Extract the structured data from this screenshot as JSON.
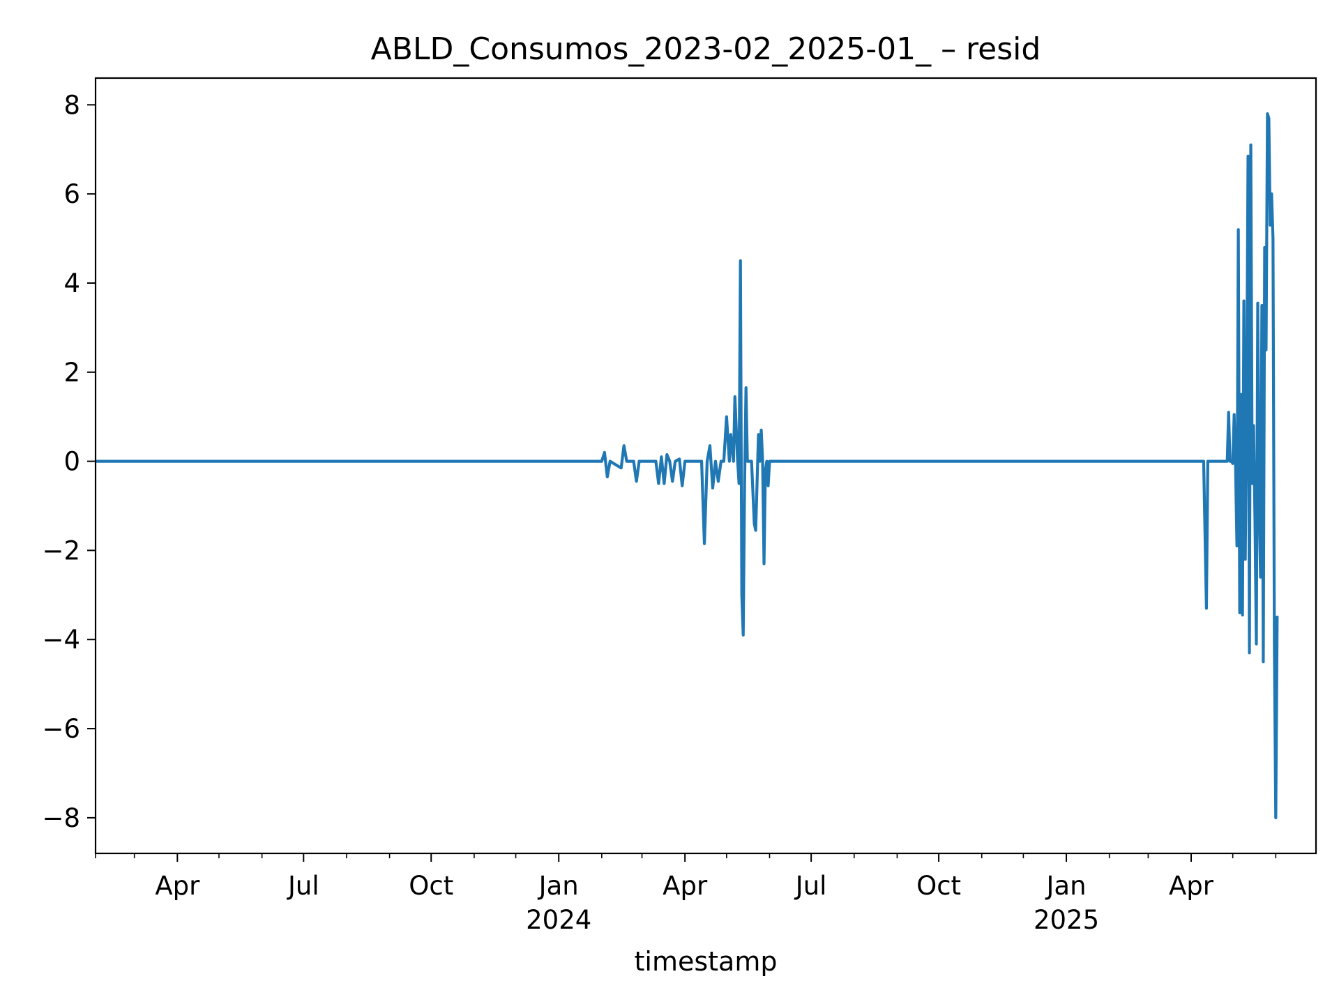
{
  "chart_data": {
    "type": "line",
    "title": "ABLD_Consumos_2023-02_2025-01_ – resid",
    "xlabel": "timestamp",
    "ylabel": "",
    "xlim": [
      "2023-02-01",
      "2025-06-30"
    ],
    "ylim": [
      -8.8,
      8.6
    ],
    "grid": false,
    "y_ticks": [
      {
        "value": -8,
        "label": "−8"
      },
      {
        "value": -6,
        "label": "−6"
      },
      {
        "value": -4,
        "label": "−4"
      },
      {
        "value": -2,
        "label": "−2"
      },
      {
        "value": 0,
        "label": "0"
      },
      {
        "value": 2,
        "label": "2"
      },
      {
        "value": 4,
        "label": "4"
      },
      {
        "value": 6,
        "label": "6"
      },
      {
        "value": 8,
        "label": "8"
      }
    ],
    "x_ticks": [
      {
        "date": "2023-04-01",
        "label": "Apr",
        "sublabel": ""
      },
      {
        "date": "2023-07-01",
        "label": "Jul",
        "sublabel": ""
      },
      {
        "date": "2023-10-01",
        "label": "Oct",
        "sublabel": ""
      },
      {
        "date": "2024-01-01",
        "label": "Jan",
        "sublabel": "2024"
      },
      {
        "date": "2024-04-01",
        "label": "Apr",
        "sublabel": ""
      },
      {
        "date": "2024-07-01",
        "label": "Jul",
        "sublabel": ""
      },
      {
        "date": "2024-10-01",
        "label": "Oct",
        "sublabel": ""
      },
      {
        "date": "2025-01-01",
        "label": "Jan",
        "sublabel": "2025"
      },
      {
        "date": "2025-04-01",
        "label": "Apr",
        "sublabel": ""
      }
    ],
    "x_minor_ticks": [
      "2023-02-01",
      "2023-03-01",
      "2023-05-01",
      "2023-06-01",
      "2023-08-01",
      "2023-09-01",
      "2023-11-01",
      "2023-12-01",
      "2024-02-01",
      "2024-03-01",
      "2024-05-01",
      "2024-06-01",
      "2024-08-01",
      "2024-09-01",
      "2024-11-01",
      "2024-12-01",
      "2025-02-01",
      "2025-03-01",
      "2025-05-01",
      "2025-06-01"
    ],
    "series": [
      {
        "name": "",
        "color": "#1f77b4",
        "points": [
          [
            "2023-02-01",
            0.0
          ],
          [
            "2024-02-01",
            0.0
          ],
          [
            "2024-02-03",
            0.2
          ],
          [
            "2024-02-05",
            -0.35
          ],
          [
            "2024-02-07",
            0.0
          ],
          [
            "2024-02-15",
            -0.15
          ],
          [
            "2024-02-17",
            0.35
          ],
          [
            "2024-02-19",
            0.0
          ],
          [
            "2024-02-24",
            0.0
          ],
          [
            "2024-02-26",
            -0.45
          ],
          [
            "2024-02-28",
            0.0
          ],
          [
            "2024-03-11",
            0.0
          ],
          [
            "2024-03-13",
            -0.5
          ],
          [
            "2024-03-15",
            0.1
          ],
          [
            "2024-03-17",
            -0.5
          ],
          [
            "2024-03-19",
            0.15
          ],
          [
            "2024-03-21",
            0.0
          ],
          [
            "2024-03-23",
            -0.45
          ],
          [
            "2024-03-25",
            0.0
          ],
          [
            "2024-03-28",
            0.05
          ],
          [
            "2024-03-30",
            -0.55
          ],
          [
            "2024-04-01",
            0.0
          ],
          [
            "2024-04-13",
            0.0
          ],
          [
            "2024-04-15",
            -1.85
          ],
          [
            "2024-04-17",
            0.0
          ],
          [
            "2024-04-19",
            0.35
          ],
          [
            "2024-04-21",
            -0.6
          ],
          [
            "2024-04-23",
            0.0
          ],
          [
            "2024-04-25",
            -0.45
          ],
          [
            "2024-04-27",
            0.0
          ],
          [
            "2024-04-29",
            0.0
          ],
          [
            "2024-05-01",
            1.0
          ],
          [
            "2024-05-03",
            0.0
          ],
          [
            "2024-05-04",
            0.6
          ],
          [
            "2024-05-06",
            0.0
          ],
          [
            "2024-05-07",
            1.45
          ],
          [
            "2024-05-09",
            0.0
          ],
          [
            "2024-05-10",
            -0.5
          ],
          [
            "2024-05-11",
            4.5
          ],
          [
            "2024-05-12",
            -3.0
          ],
          [
            "2024-05-13",
            -3.9
          ],
          [
            "2024-05-14",
            -0.5
          ],
          [
            "2024-05-15",
            1.65
          ],
          [
            "2024-05-16",
            0.0
          ],
          [
            "2024-05-19",
            0.0
          ],
          [
            "2024-05-21",
            -1.4
          ],
          [
            "2024-05-22",
            -1.55
          ],
          [
            "2024-05-24",
            0.6
          ],
          [
            "2024-05-25",
            0.0
          ],
          [
            "2024-05-26",
            0.7
          ],
          [
            "2024-05-27",
            0.0
          ],
          [
            "2024-05-28",
            -2.3
          ],
          [
            "2024-05-29",
            -0.2
          ],
          [
            "2024-05-30",
            0.0
          ],
          [
            "2024-05-31",
            -0.55
          ],
          [
            "2024-06-01",
            0.0
          ],
          [
            "2025-04-10",
            0.0
          ],
          [
            "2025-04-12",
            -3.3
          ],
          [
            "2025-04-13",
            0.0
          ],
          [
            "2025-04-27",
            0.0
          ],
          [
            "2025-04-28",
            1.1
          ],
          [
            "2025-04-29",
            0.0
          ],
          [
            "2025-04-30",
            0.0
          ],
          [
            "2025-05-01",
            -0.05
          ],
          [
            "2025-05-02",
            1.05
          ],
          [
            "2025-05-03",
            -0.1
          ],
          [
            "2025-05-04",
            -1.9
          ],
          [
            "2025-05-05",
            5.2
          ],
          [
            "2025-05-06",
            -3.4
          ],
          [
            "2025-05-07",
            1.5
          ],
          [
            "2025-05-08",
            -3.45
          ],
          [
            "2025-05-09",
            3.6
          ],
          [
            "2025-05-10",
            -2.2
          ],
          [
            "2025-05-11",
            1.2
          ],
          [
            "2025-05-12",
            6.85
          ],
          [
            "2025-05-13",
            -4.3
          ],
          [
            "2025-05-14",
            7.1
          ],
          [
            "2025-05-15",
            -0.5
          ],
          [
            "2025-05-16",
            0.8
          ],
          [
            "2025-05-17",
            -1.3
          ],
          [
            "2025-05-18",
            -4.1
          ],
          [
            "2025-05-19",
            3.55
          ],
          [
            "2025-05-20",
            -0.8
          ],
          [
            "2025-05-21",
            -2.6
          ],
          [
            "2025-05-22",
            3.5
          ],
          [
            "2025-05-23",
            -4.5
          ],
          [
            "2025-05-24",
            4.8
          ],
          [
            "2025-05-25",
            2.5
          ],
          [
            "2025-05-26",
            7.8
          ],
          [
            "2025-05-27",
            7.7
          ],
          [
            "2025-05-28",
            5.3
          ],
          [
            "2025-05-29",
            6.0
          ],
          [
            "2025-05-30",
            5.0
          ],
          [
            "2025-05-31",
            -4.1
          ],
          [
            "2025-06-01",
            -8.0
          ],
          [
            "2025-06-02",
            -3.5
          ]
        ]
      }
    ]
  }
}
